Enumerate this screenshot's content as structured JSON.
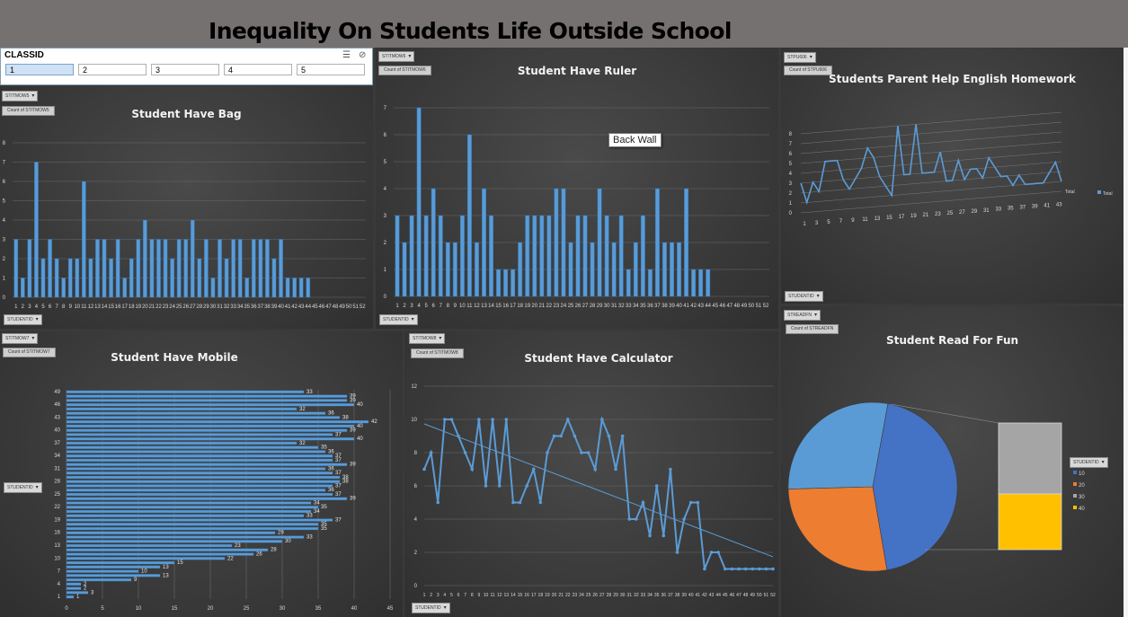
{
  "dashboard_title": "Inequality On Students Life Outside School",
  "slicer": {
    "header": "CLASSID",
    "items": [
      "1",
      "2",
      "3",
      "4",
      "5"
    ],
    "selected": "1"
  },
  "tooltip": "Back Wall",
  "labels": {
    "student_axis_button": "STUDENTID",
    "bag_filter": "STITMOW5",
    "bag_value": "Count of STITMOW5",
    "ruler_filter": "STITMOW6",
    "ruler_value": "Count of STITMOW6",
    "help_filter": "STPU606",
    "help_value": "Count of STPU606",
    "mobile_filter": "STITMOW7",
    "mobile_value": "Count of STITMOW7",
    "calc_filter": "STITMOW8",
    "calc_value": "Count of STITMOW8",
    "read_filter": "STREADFN",
    "read_value": "Count of STREADFN",
    "help_legend_total": "Total",
    "help_axis_total": "Total"
  },
  "colors": {
    "bar": "#5b9bd5",
    "bar_edge": "#2e75b6",
    "pie_10": "#4472c4",
    "pie_20": "#ed7d31",
    "pie_30": "#a5a5a5",
    "pie_40": "#ffc000",
    "pie_light": "#5b9bd5"
  },
  "chart_data": [
    {
      "id": "bag",
      "type": "bar",
      "title": "Student Have Bag",
      "xlabel": "",
      "ylabel": "",
      "ylim": [
        0,
        8
      ],
      "categories": [
        "1",
        "2",
        "3",
        "4",
        "5",
        "6",
        "7",
        "8",
        "9",
        "10",
        "11",
        "12",
        "13",
        "14",
        "15",
        "16",
        "17",
        "18",
        "19",
        "20",
        "21",
        "22",
        "23",
        "24",
        "25",
        "26",
        "27",
        "28",
        "29",
        "30",
        "31",
        "32",
        "33",
        "34",
        "35",
        "36",
        "37",
        "38",
        "39",
        "40",
        "41",
        "42",
        "43",
        "44",
        "45",
        "46",
        "47",
        "48",
        "49",
        "50",
        "51",
        "52"
      ],
      "values": [
        3,
        1,
        3,
        7,
        2,
        3,
        2,
        1,
        2,
        2,
        6,
        2,
        3,
        3,
        2,
        3,
        1,
        2,
        3,
        4,
        3,
        3,
        3,
        2,
        3,
        3,
        4,
        2,
        3,
        1,
        3,
        2,
        3,
        3,
        1,
        3,
        3,
        3,
        2,
        3,
        1,
        1,
        1,
        1,
        0,
        0,
        0,
        0,
        0,
        0,
        0,
        0
      ]
    },
    {
      "id": "ruler",
      "type": "bar",
      "title": "Student Have Ruler",
      "xlabel": "",
      "ylabel": "",
      "ylim": [
        0,
        7
      ],
      "categories": [
        "1",
        "2",
        "3",
        "4",
        "5",
        "6",
        "7",
        "8",
        "9",
        "10",
        "11",
        "12",
        "13",
        "14",
        "15",
        "16",
        "17",
        "18",
        "19",
        "20",
        "21",
        "22",
        "23",
        "24",
        "25",
        "26",
        "27",
        "28",
        "29",
        "30",
        "31",
        "32",
        "33",
        "34",
        "35",
        "36",
        "37",
        "38",
        "39",
        "40",
        "41",
        "42",
        "43",
        "44",
        "45",
        "46",
        "47",
        "48",
        "49",
        "50",
        "51",
        "52"
      ],
      "values": [
        3,
        2,
        3,
        7,
        3,
        4,
        3,
        2,
        2,
        3,
        6,
        2,
        4,
        3,
        1,
        1,
        1,
        2,
        3,
        3,
        3,
        3,
        4,
        4,
        2,
        3,
        3,
        2,
        4,
        3,
        2,
        3,
        1,
        2,
        3,
        1,
        4,
        2,
        2,
        2,
        4,
        1,
        1,
        1,
        0,
        0,
        0,
        0,
        0,
        0,
        0,
        0
      ]
    },
    {
      "id": "help",
      "type": "line",
      "title": "Students Parent Help English Homework",
      "xlabel": "",
      "ylabel": "",
      "ylim": [
        0,
        8
      ],
      "x": [
        "1",
        "2",
        "3",
        "4",
        "5",
        "6",
        "7",
        "8",
        "9",
        "10",
        "11",
        "12",
        "13",
        "14",
        "15",
        "16",
        "17",
        "18",
        "19",
        "20",
        "21",
        "22",
        "23",
        "24",
        "25",
        "26",
        "27",
        "28",
        "29",
        "30",
        "31",
        "32",
        "33",
        "34",
        "35",
        "36",
        "37",
        "38",
        "39",
        "40",
        "41",
        "42",
        "43",
        "44"
      ],
      "ticks": [
        "1",
        "3",
        "5",
        "7",
        "9",
        "11",
        "13",
        "15",
        "17",
        "19",
        "21",
        "23",
        "25",
        "27",
        "29",
        "31",
        "33",
        "35",
        "37",
        "39",
        "41",
        "43"
      ],
      "series": [
        {
          "name": "Total",
          "values": [
            3,
            1,
            3,
            2,
            5,
            5,
            5,
            3,
            2,
            3,
            4,
            6,
            5,
            3,
            2,
            1,
            8,
            3,
            3,
            8,
            3,
            3,
            3,
            5,
            2,
            2,
            4,
            2,
            3,
            3,
            2,
            4,
            3,
            2,
            2,
            1,
            2,
            1,
            1,
            1,
            1,
            2,
            3,
            1
          ]
        }
      ]
    },
    {
      "id": "mobile",
      "type": "bar",
      "title": "Student Have Mobile",
      "xlabel": "",
      "ylabel": "",
      "xlim": [
        0,
        45
      ],
      "xticks": [
        0,
        5,
        10,
        15,
        20,
        25,
        30,
        35,
        40,
        45
      ],
      "ytick_labels": [
        "49",
        "46",
        "43",
        "40",
        "37",
        "34",
        "31",
        "28",
        "25",
        "22",
        "19",
        "16",
        "13",
        "10",
        "7",
        "4",
        "1"
      ],
      "values": [
        1,
        3,
        2,
        2,
        9,
        13,
        10,
        13,
        15,
        22,
        26,
        28,
        23,
        30,
        33,
        29,
        35,
        35,
        37,
        33,
        34,
        35,
        34,
        39,
        37,
        36,
        37,
        38,
        38,
        37,
        36,
        39,
        37,
        37,
        36,
        35,
        32,
        40,
        37,
        39,
        40,
        42,
        38,
        36,
        32,
        40,
        39,
        39,
        33
      ]
    },
    {
      "id": "calc",
      "type": "line",
      "title": "Student Have Calculator",
      "xlabel": "",
      "ylabel": "",
      "ylim": [
        0,
        12
      ],
      "yticks": [
        0,
        2,
        4,
        6,
        8,
        10,
        12
      ],
      "x": [
        "1",
        "2",
        "3",
        "4",
        "5",
        "6",
        "7",
        "8",
        "9",
        "10",
        "11",
        "12",
        "13",
        "14",
        "15",
        "16",
        "17",
        "18",
        "19",
        "20",
        "21",
        "22",
        "23",
        "24",
        "25",
        "26",
        "27",
        "28",
        "29",
        "30",
        "31",
        "32",
        "33",
        "34",
        "35",
        "36",
        "37",
        "38",
        "39",
        "40",
        "41",
        "42",
        "43",
        "44",
        "45",
        "46",
        "47",
        "48",
        "49",
        "50",
        "51",
        "52"
      ],
      "values": [
        7,
        8,
        5,
        10,
        10,
        9,
        8,
        7,
        10,
        6,
        10,
        6,
        10,
        5,
        5,
        6,
        7,
        5,
        8,
        9,
        9,
        10,
        9,
        8,
        8,
        7,
        10,
        9,
        7,
        9,
        4,
        4,
        5,
        3,
        6,
        3,
        7,
        2,
        4,
        5,
        5,
        1,
        2,
        2,
        1,
        1,
        1,
        1,
        1,
        1,
        1,
        1
      ],
      "trendline": true
    },
    {
      "id": "read",
      "type": "pie",
      "title": "Student Read For Fun",
      "slices": [
        {
          "name": "10",
          "value": 44
        },
        {
          "name": "20",
          "value": 27
        },
        {
          "name": "30",
          "value": 28
        }
      ],
      "bar_of_pie": [
        {
          "name": "30",
          "value": 0.56
        },
        {
          "name": "40",
          "value": 0.44
        }
      ],
      "legend": [
        "10",
        "20",
        "30",
        "40"
      ],
      "legend_title": "STUDENTID"
    }
  ]
}
